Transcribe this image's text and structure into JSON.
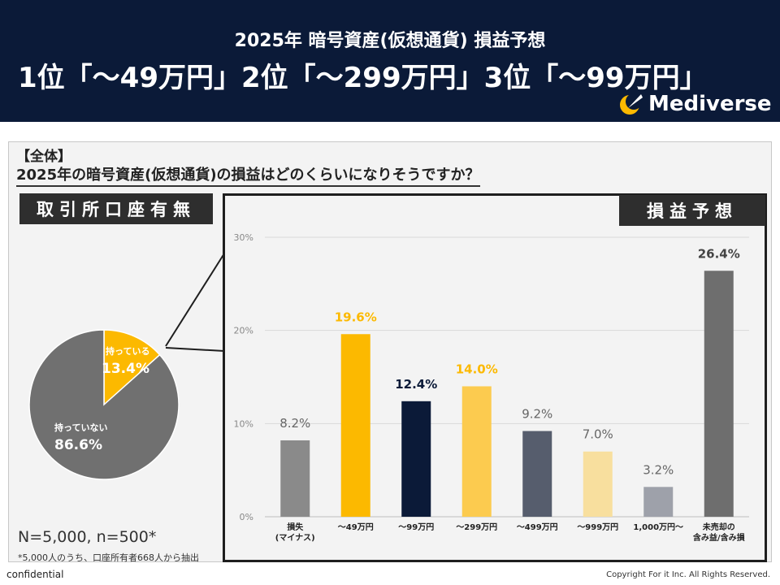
{
  "header": {
    "subtitle": "2025年 暗号資産(仮想通貨) 損益予想",
    "title": "1位「～49万円」2位「～299万円」3位「～99万円」",
    "logo_text": "Mediverse"
  },
  "panel": {
    "tag": "【全体】",
    "question": "2025年の暗号資産(仮想通貨)の損益はどのくらいになりそうですか？",
    "left_label": "取引所口座有無",
    "right_label": "損益予想",
    "sample": "N=5,000, n=500*",
    "footnote": "*5,000人のうち、口座所有者668人から抽出"
  },
  "footer": {
    "confidential": "confidential",
    "copyright": "Copyright For it Inc. All Rights Reserved."
  },
  "chart_data": [
    {
      "type": "pie",
      "title": "取引所口座有無",
      "slices": [
        {
          "label": "持っている",
          "value": 13.4,
          "display": "13.4%",
          "color": "#fcb900"
        },
        {
          "label": "持っていない",
          "value": 86.6,
          "display": "86.6%",
          "color": "#707070"
        }
      ]
    },
    {
      "type": "bar",
      "title": "損益予想",
      "categories": [
        "損失\n(マイナス)",
        "～49万円",
        "～99万円",
        "～299万円",
        "～499万円",
        "～999万円",
        "1,000万円～",
        "未売却の\n含み益/含み損"
      ],
      "values": [
        8.2,
        19.6,
        12.4,
        14.0,
        9.2,
        7.0,
        3.2,
        26.4
      ],
      "labels": [
        "8.2%",
        "19.6%",
        "12.4%",
        "14.0%",
        "9.2%",
        "7.0%",
        "3.2%",
        "26.4%"
      ],
      "bar_colors": [
        "#8a8a8a",
        "#fcb900",
        "#0b1a38",
        "#fccb4f",
        "#565d6d",
        "#f8df9e",
        "#9ea1aa",
        "#6e6e6e"
      ],
      "label_colors": [
        "#666666",
        "#fcb900",
        "#0b1a38",
        "#fcb900",
        "#666666",
        "#666666",
        "#666666",
        "#444444"
      ],
      "ylim": [
        0,
        30
      ],
      "yticks": [
        0,
        10,
        20,
        30
      ],
      "ytick_labels": [
        "0%",
        "10%",
        "20%",
        "30%"
      ],
      "grid": true
    }
  ]
}
